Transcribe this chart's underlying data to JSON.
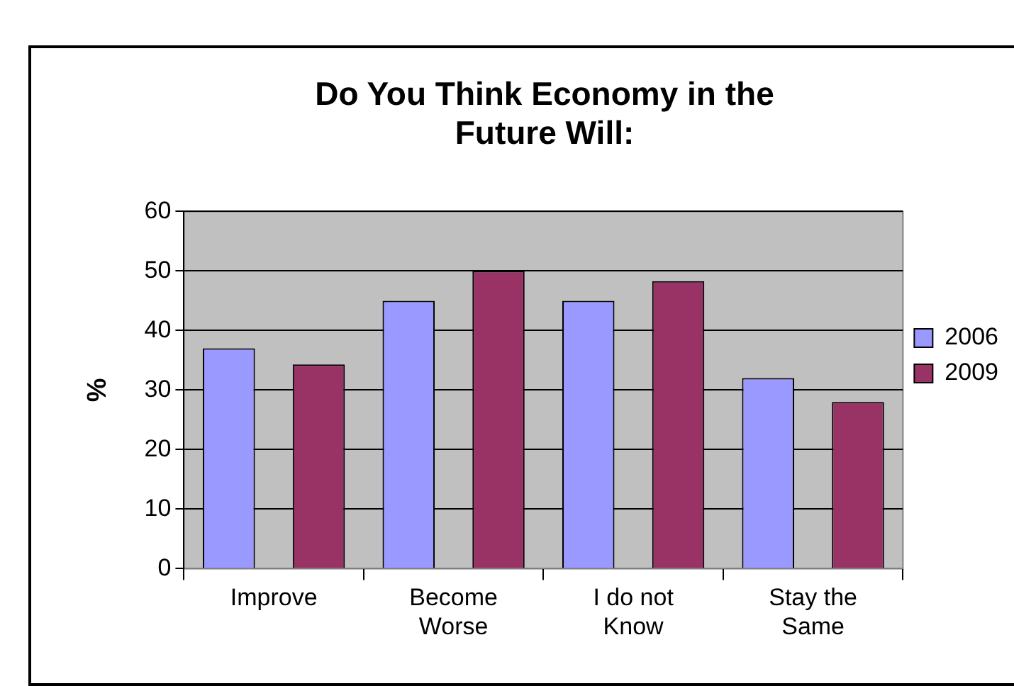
{
  "chart_data": {
    "type": "bar",
    "title": "Do You Think Economy in the Future Will:",
    "ylabel": "%",
    "categories": [
      "Improve",
      "Become Worse",
      "I do not Know",
      "Stay the Same"
    ],
    "series": [
      {
        "name": "2006",
        "color": "#9999ff",
        "values": [
          37,
          45,
          45,
          32
        ]
      },
      {
        "name": "2009",
        "color": "#993366",
        "values": [
          34.3,
          50,
          48.3,
          28
        ]
      }
    ],
    "ylim": [
      0,
      60
    ],
    "yticks": [
      0,
      10,
      20,
      30,
      40,
      50,
      60
    ],
    "grid": "y",
    "legend": "right"
  }
}
